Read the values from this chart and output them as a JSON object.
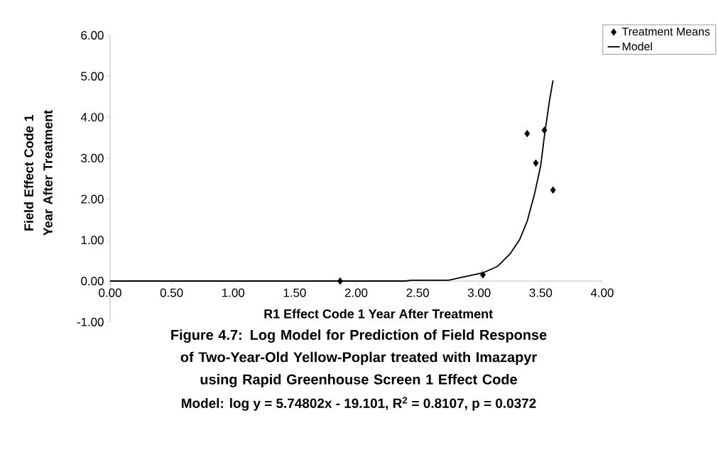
{
  "chart_data": {
    "type": "scatter",
    "title": "Figure 4.7: Log Model for Prediction of Field Response of Two-Year-Old Yellow-Poplar treated with Imazapyr using Rapid Greenhouse Screen 1 Effect Code",
    "xlabel": "R1 Effect Code 1 Year After Treatment",
    "ylabel": "Field Effect Code 1 Year After Treatment",
    "annotations": [
      "Model: log y = 5.74802x - 19.101, R$^{2}$ = 0.8107, p = 0.0372"
    ],
    "xlim": [
      0,
      4
    ],
    "ylim": [
      -1,
      6
    ],
    "xticks": [
      {
        "value": 0,
        "label": "0.00"
      },
      {
        "value": 0.5,
        "label": "0.50"
      },
      {
        "value": 1,
        "label": "1.00"
      },
      {
        "value": 1.5,
        "label": "1.50"
      },
      {
        "value": 2,
        "label": "2.00"
      },
      {
        "value": 2.5,
        "label": "2.50"
      },
      {
        "value": 3,
        "label": "3.00"
      },
      {
        "value": 3.5,
        "label": "3.50"
      },
      {
        "value": 4,
        "label": "4.00"
      }
    ],
    "yticks": [
      {
        "value": -1,
        "label": "-1.00"
      },
      {
        "value": 0,
        "label": "0.00"
      },
      {
        "value": 1,
        "label": "1.00"
      },
      {
        "value": 2,
        "label": "2.00"
      },
      {
        "value": 3,
        "label": "3.00"
      },
      {
        "value": 4,
        "label": "4.00"
      },
      {
        "value": 5,
        "label": "5.00"
      },
      {
        "value": 6,
        "label": "6.00"
      }
    ],
    "legend": "top right",
    "series": [
      {
        "name": "Treatment Means",
        "type": "scatter",
        "marker": "diamond",
        "color": "#000000",
        "x": [
          1.87,
          3.03,
          3.39,
          3.46,
          3.53,
          3.6
        ],
        "values": [
          0.0,
          0.15,
          3.6,
          2.88,
          3.68,
          2.22
        ]
      },
      {
        "name": "Model",
        "type": "line",
        "marker": "none",
        "line_style": "solid",
        "color": "#000000",
        "x": [
          0,
          2.4,
          2.45,
          2.75,
          3.03,
          3.15,
          3.25,
          3.33,
          3.39,
          3.45,
          3.5,
          3.53,
          3.57,
          3.6
        ],
        "values": [
          0,
          0,
          0.02,
          0.02,
          0.2,
          0.36,
          0.66,
          1.02,
          1.46,
          2.13,
          2.82,
          3.54,
          4.38,
          4.9
        ]
      }
    ]
  }
}
